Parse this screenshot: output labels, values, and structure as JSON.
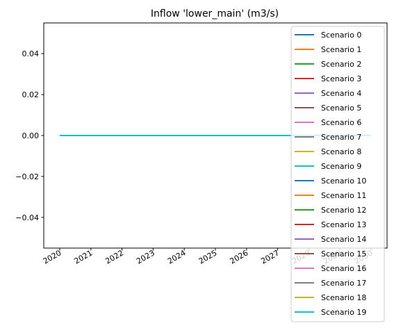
{
  "chart_data": {
    "type": "line",
    "title": "Inflow 'lower_main' (m3/s)",
    "xlabel": "",
    "ylabel": "",
    "x": [
      "2020-01-01",
      "2030-01-01"
    ],
    "x_ticks": [
      "2020",
      "2021",
      "2022",
      "2023",
      "2024",
      "2025",
      "2026",
      "2027",
      "2028",
      "2029",
      "2030"
    ],
    "y_ticks": [
      "0.04",
      "0.02",
      "0.00",
      "−0.02",
      "−0.04"
    ],
    "y_tick_values": [
      0.04,
      0.02,
      0.0,
      -0.02,
      -0.04
    ],
    "ylim": [
      -0.055,
      0.055
    ],
    "grid": false,
    "legend_position": "right",
    "series": [
      {
        "name": "Scenario 0",
        "values": [
          0,
          0
        ],
        "color": "#1f77b4"
      },
      {
        "name": "Scenario 1",
        "values": [
          0,
          0
        ],
        "color": "#ff7f0e"
      },
      {
        "name": "Scenario 2",
        "values": [
          0,
          0
        ],
        "color": "#2ca02c"
      },
      {
        "name": "Scenario 3",
        "values": [
          0,
          0
        ],
        "color": "#d62728"
      },
      {
        "name": "Scenario 4",
        "values": [
          0,
          0
        ],
        "color": "#9467bd"
      },
      {
        "name": "Scenario 5",
        "values": [
          0,
          0
        ],
        "color": "#8c564b"
      },
      {
        "name": "Scenario 6",
        "values": [
          0,
          0
        ],
        "color": "#e377c2"
      },
      {
        "name": "Scenario 7",
        "values": [
          0,
          0
        ],
        "color": "#7f7f7f"
      },
      {
        "name": "Scenario 8",
        "values": [
          0,
          0
        ],
        "color": "#bcbd22"
      },
      {
        "name": "Scenario 9",
        "values": [
          0,
          0
        ],
        "color": "#17becf"
      },
      {
        "name": "Scenario 10",
        "values": [
          0,
          0
        ],
        "color": "#1f77b4"
      },
      {
        "name": "Scenario 11",
        "values": [
          0,
          0
        ],
        "color": "#ff7f0e"
      },
      {
        "name": "Scenario 12",
        "values": [
          0,
          0
        ],
        "color": "#2ca02c"
      },
      {
        "name": "Scenario 13",
        "values": [
          0,
          0
        ],
        "color": "#d62728"
      },
      {
        "name": "Scenario 14",
        "values": [
          0,
          0
        ],
        "color": "#9467bd"
      },
      {
        "name": "Scenario 15",
        "values": [
          0,
          0
        ],
        "color": "#8c564b"
      },
      {
        "name": "Scenario 16",
        "values": [
          0,
          0
        ],
        "color": "#e377c2"
      },
      {
        "name": "Scenario 17",
        "values": [
          0,
          0
        ],
        "color": "#7f7f7f"
      },
      {
        "name": "Scenario 18",
        "values": [
          0,
          0
        ],
        "color": "#bcbd22"
      },
      {
        "name": "Scenario 19",
        "values": [
          0,
          0
        ],
        "color": "#17becf"
      }
    ]
  }
}
